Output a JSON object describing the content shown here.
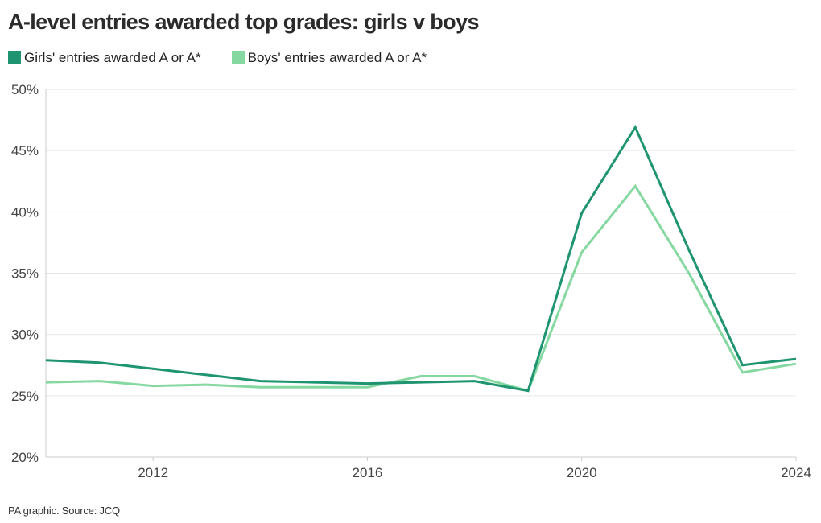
{
  "chart_data": {
    "type": "line",
    "title": "A-level entries awarded top grades: girls v boys",
    "xlabel": "",
    "ylabel": "",
    "x": [
      2010,
      2011,
      2012,
      2013,
      2014,
      2015,
      2016,
      2017,
      2018,
      2019,
      2020,
      2021,
      2022,
      2023,
      2024
    ],
    "xlim": [
      2010,
      2024
    ],
    "ylim": [
      20,
      50
    ],
    "x_ticks": [
      2012,
      2016,
      2020,
      2024
    ],
    "x_tick_labels": [
      "2012",
      "2016",
      "2020",
      "2024"
    ],
    "y_ticks": [
      20,
      25,
      30,
      35,
      40,
      45,
      50
    ],
    "y_tick_labels": [
      "20%",
      "25%",
      "30%",
      "35%",
      "40%",
      "45%",
      "50%"
    ],
    "grid": true,
    "legend_position": "top-left",
    "series": [
      {
        "name": "Girls' entries awarded A or A*",
        "color": "#1f9470",
        "values": [
          27.9,
          27.7,
          27.2,
          26.7,
          26.2,
          26.1,
          26.0,
          26.1,
          26.2,
          25.4,
          39.9,
          46.9,
          36.9,
          27.5,
          28.0
        ]
      },
      {
        "name": "Boys' entries awarded A or A*",
        "color": "#86d8a1",
        "values": [
          26.1,
          26.2,
          25.8,
          25.9,
          25.7,
          25.7,
          25.7,
          26.6,
          26.6,
          25.4,
          36.7,
          42.1,
          35.0,
          26.9,
          27.6
        ]
      }
    ],
    "source": "PA graphic. Source: JCQ"
  }
}
